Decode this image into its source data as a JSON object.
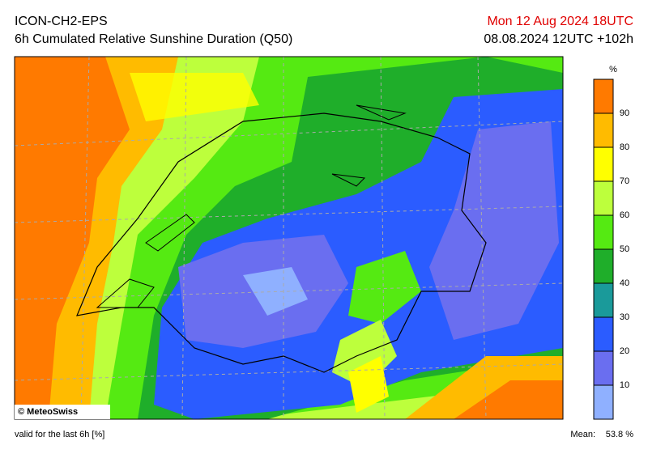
{
  "header": {
    "model": "ICON-CH2-EPS",
    "title": "6h Cumulated Relative Sunshine Duration (Q50)",
    "valid_time": "Mon 12 Aug 2024 18UTC",
    "run": "08.08.2024 12UTC +102h"
  },
  "colorbar": {
    "unit": "%",
    "ticks": [
      10,
      20,
      30,
      40,
      50,
      60,
      70,
      80,
      90
    ],
    "colors": [
      "#8fb0ff",
      "#6a6ef0",
      "#2b5cff",
      "#1a9a9a",
      "#1fae2a",
      "#55ea12",
      "#bdff3c",
      "#ffff00",
      "#ffbb00",
      "#ff7a00"
    ]
  },
  "map": {
    "credit": "© MeteoSwiss"
  },
  "footer": {
    "note": "valid for the last 6h [%]",
    "mean_label": "Mean:",
    "mean_value": "53.8 %"
  }
}
